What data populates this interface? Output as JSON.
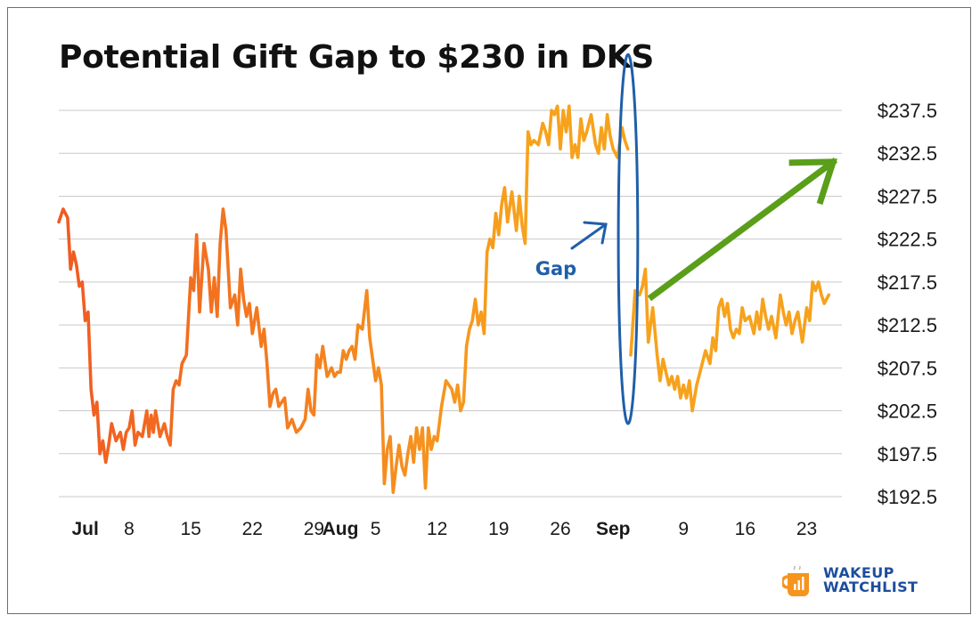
{
  "chart_data": {
    "type": "line",
    "title": "Potential Gift Gap to $230 in DKS",
    "y_ticks": [
      "$237.5",
      "$232.5",
      "$227.5",
      "$222.5",
      "$217.5",
      "$212.5",
      "$207.5",
      "$202.5",
      "$197.5",
      "$192.5"
    ],
    "y_tick_values": [
      237.5,
      232.5,
      227.5,
      222.5,
      217.5,
      212.5,
      207.5,
      202.5,
      197.5,
      192.5
    ],
    "ylim": [
      192.5,
      237.5
    ],
    "y_axis_side": "right",
    "x_ticks": [
      {
        "label": "Jul",
        "date": "2023-07-03",
        "bold": true
      },
      {
        "label": "8",
        "date": "2023-07-08",
        "bold": false
      },
      {
        "label": "15",
        "date": "2023-07-15",
        "bold": false
      },
      {
        "label": "22",
        "date": "2023-07-22",
        "bold": false
      },
      {
        "label": "29",
        "date": "2023-07-29",
        "bold": false
      },
      {
        "label": "Aug",
        "date": "2023-08-01",
        "bold": true
      },
      {
        "label": "5",
        "date": "2023-08-05",
        "bold": false
      },
      {
        "label": "12",
        "date": "2023-08-12",
        "bold": false
      },
      {
        "label": "19",
        "date": "2023-08-19",
        "bold": false
      },
      {
        "label": "26",
        "date": "2023-08-26",
        "bold": false
      },
      {
        "label": "Sep",
        "date": "2023-09-01",
        "bold": true
      },
      {
        "label": "9",
        "date": "2023-09-09",
        "bold": false
      },
      {
        "label": "16",
        "date": "2023-09-16",
        "bold": false
      },
      {
        "label": "23",
        "date": "2023-09-23",
        "bold": false
      }
    ],
    "xlim": [
      "2023-06-30",
      "2023-09-27"
    ],
    "grid": "horizontal",
    "series": [
      {
        "color_start": "#f05a22",
        "color_end": "#f7a21c",
        "points": [
          [
            "2023-06-30",
            224.5
          ],
          [
            "2023-06-30",
            226.0
          ],
          [
            "2023-07-01",
            225.0
          ],
          [
            "2023-07-01",
            219.0
          ],
          [
            "2023-07-01",
            221.0
          ],
          [
            "2023-07-02",
            219.5
          ],
          [
            "2023-07-02",
            217.0
          ],
          [
            "2023-07-02",
            217.5
          ],
          [
            "2023-07-03",
            213.0
          ],
          [
            "2023-07-03",
            214.0
          ],
          [
            "2023-07-03",
            205.0
          ],
          [
            "2023-07-04",
            202.0
          ],
          [
            "2023-07-04",
            203.5
          ],
          [
            "2023-07-04",
            197.5
          ],
          [
            "2023-07-05",
            199.0
          ],
          [
            "2023-07-05",
            196.5
          ],
          [
            "2023-07-05",
            198.5
          ],
          [
            "2023-07-06",
            201.0
          ],
          [
            "2023-07-06",
            199.0
          ],
          [
            "2023-07-07",
            200.0
          ],
          [
            "2023-07-07",
            198.0
          ],
          [
            "2023-07-07",
            200.0
          ],
          [
            "2023-07-08",
            200.5
          ],
          [
            "2023-07-08",
            202.5
          ],
          [
            "2023-07-08",
            198.5
          ],
          [
            "2023-07-09",
            200.0
          ],
          [
            "2023-07-09",
            199.5
          ],
          [
            "2023-07-10",
            202.5
          ],
          [
            "2023-07-10",
            199.5
          ],
          [
            "2023-07-10",
            202.0
          ],
          [
            "2023-07-10",
            200.0
          ],
          [
            "2023-07-11",
            202.5
          ],
          [
            "2023-07-11",
            199.5
          ],
          [
            "2023-07-12",
            201.0
          ],
          [
            "2023-07-12",
            199.5
          ],
          [
            "2023-07-12",
            198.5
          ],
          [
            "2023-07-13",
            205.0
          ],
          [
            "2023-07-13",
            206.0
          ],
          [
            "2023-07-13",
            205.5
          ],
          [
            "2023-07-14",
            208.0
          ],
          [
            "2023-07-14",
            209.0
          ],
          [
            "2023-07-15",
            218.0
          ],
          [
            "2023-07-15",
            216.5
          ],
          [
            "2023-07-15",
            223.0
          ],
          [
            "2023-07-16",
            214.0
          ],
          [
            "2023-07-16",
            222.0
          ],
          [
            "2023-07-17",
            219.0
          ],
          [
            "2023-07-17",
            214.0
          ],
          [
            "2023-07-17",
            218.0
          ],
          [
            "2023-07-18",
            213.5
          ],
          [
            "2023-07-18",
            222.0
          ],
          [
            "2023-07-18",
            226.0
          ],
          [
            "2023-07-19",
            223.5
          ],
          [
            "2023-07-19",
            214.5
          ],
          [
            "2023-07-20",
            216.0
          ],
          [
            "2023-07-20",
            212.5
          ],
          [
            "2023-07-20",
            219.0
          ],
          [
            "2023-07-21",
            215.5
          ],
          [
            "2023-07-21",
            213.5
          ],
          [
            "2023-07-21",
            215.0
          ],
          [
            "2023-07-22",
            211.5
          ],
          [
            "2023-07-22",
            214.5
          ],
          [
            "2023-07-23",
            210.0
          ],
          [
            "2023-07-23",
            212.0
          ],
          [
            "2023-07-23",
            208.0
          ],
          [
            "2023-07-24",
            203.0
          ],
          [
            "2023-07-24",
            204.5
          ],
          [
            "2023-07-24",
            205.0
          ],
          [
            "2023-07-25",
            203.0
          ],
          [
            "2023-07-25",
            203.5
          ],
          [
            "2023-07-25",
            204.0
          ],
          [
            "2023-07-26",
            200.5
          ],
          [
            "2023-07-26",
            201.5
          ],
          [
            "2023-07-27",
            200.0
          ],
          [
            "2023-07-27",
            200.5
          ],
          [
            "2023-07-28",
            201.5
          ],
          [
            "2023-07-28",
            205.0
          ],
          [
            "2023-07-28",
            202.5
          ],
          [
            "2023-07-29",
            202.0
          ],
          [
            "2023-07-29",
            209.0
          ],
          [
            "2023-07-29",
            207.5
          ],
          [
            "2023-07-30",
            210.0
          ],
          [
            "2023-07-30",
            206.5
          ],
          [
            "2023-07-31",
            207.5
          ],
          [
            "2023-07-31",
            206.5
          ],
          [
            "2023-07-31",
            207.0
          ],
          [
            "2023-08-01",
            207.0
          ],
          [
            "2023-08-01",
            209.5
          ],
          [
            "2023-08-01",
            208.5
          ],
          [
            "2023-08-02",
            209.5
          ],
          [
            "2023-08-02",
            210.0
          ],
          [
            "2023-08-02",
            208.5
          ],
          [
            "2023-08-03",
            212.5
          ],
          [
            "2023-08-03",
            212.0
          ],
          [
            "2023-08-04",
            216.5
          ],
          [
            "2023-08-04",
            211.0
          ],
          [
            "2023-08-04",
            208.5
          ],
          [
            "2023-08-05",
            206.0
          ],
          [
            "2023-08-05",
            207.5
          ],
          [
            "2023-08-05",
            205.5
          ],
          [
            "2023-08-06",
            194.0
          ],
          [
            "2023-08-06",
            198.0
          ],
          [
            "2023-08-06",
            199.5
          ],
          [
            "2023-08-07",
            193.0
          ],
          [
            "2023-08-07",
            196.0
          ],
          [
            "2023-08-07",
            198.5
          ],
          [
            "2023-08-08",
            196.0
          ],
          [
            "2023-08-08",
            195.0
          ],
          [
            "2023-08-08",
            197.5
          ],
          [
            "2023-08-09",
            199.5
          ],
          [
            "2023-08-09",
            196.5
          ],
          [
            "2023-08-09",
            200.5
          ],
          [
            "2023-08-10",
            198.0
          ],
          [
            "2023-08-10",
            200.5
          ],
          [
            "2023-08-10",
            193.5
          ],
          [
            "2023-08-11",
            200.5
          ],
          [
            "2023-08-11",
            198.0
          ],
          [
            "2023-08-11",
            199.5
          ],
          [
            "2023-08-12",
            199.0
          ],
          [
            "2023-08-12",
            203.0
          ],
          [
            "2023-08-13",
            206.0
          ],
          [
            "2023-08-13",
            205.5
          ],
          [
            "2023-08-13",
            205.0
          ],
          [
            "2023-08-14",
            203.5
          ],
          [
            "2023-08-14",
            205.5
          ],
          [
            "2023-08-14",
            202.5
          ],
          [
            "2023-08-15",
            203.5
          ],
          [
            "2023-08-15",
            210.0
          ],
          [
            "2023-08-15",
            212.0
          ],
          [
            "2023-08-16",
            213.0
          ],
          [
            "2023-08-16",
            215.5
          ],
          [
            "2023-08-16",
            212.5
          ],
          [
            "2023-08-17",
            214.0
          ],
          [
            "2023-08-17",
            211.5
          ],
          [
            "2023-08-17",
            221.0
          ],
          [
            "2023-08-18",
            222.5
          ],
          [
            "2023-08-18",
            221.5
          ],
          [
            "2023-08-18",
            225.5
          ],
          [
            "2023-08-19",
            223.0
          ],
          [
            "2023-08-19",
            226.5
          ],
          [
            "2023-08-19",
            228.5
          ],
          [
            "2023-08-20",
            224.5
          ],
          [
            "2023-08-20",
            228.0
          ],
          [
            "2023-08-21",
            223.5
          ],
          [
            "2023-08-21",
            227.5
          ],
          [
            "2023-08-21",
            224.0
          ],
          [
            "2023-08-22",
            222.0
          ],
          [
            "2023-08-22",
            235.0
          ],
          [
            "2023-08-22",
            233.5
          ],
          [
            "2023-08-23",
            234.0
          ],
          [
            "2023-08-23",
            233.5
          ],
          [
            "2023-08-24",
            236.0
          ],
          [
            "2023-08-24",
            235.0
          ],
          [
            "2023-08-24",
            233.5
          ],
          [
            "2023-08-25",
            237.5
          ],
          [
            "2023-08-25",
            237.0
          ],
          [
            "2023-08-25",
            238.0
          ],
          [
            "2023-08-26",
            233.0
          ],
          [
            "2023-08-26",
            237.5
          ],
          [
            "2023-08-26",
            235.0
          ],
          [
            "2023-08-27",
            238.0
          ],
          [
            "2023-08-27",
            232.0
          ],
          [
            "2023-08-27",
            233.5
          ],
          [
            "2023-08-28",
            232.0
          ],
          [
            "2023-08-28",
            236.5
          ],
          [
            "2023-08-28",
            234.0
          ],
          [
            "2023-08-29",
            235.0
          ],
          [
            "2023-08-29",
            237.0
          ],
          [
            "2023-08-30",
            233.5
          ],
          [
            "2023-08-30",
            232.5
          ],
          [
            "2023-08-30",
            235.5
          ],
          [
            "2023-08-31",
            233.0
          ],
          [
            "2023-08-31",
            237.0
          ],
          [
            "2023-08-31",
            234.5
          ],
          [
            "2023-09-01",
            233.0
          ],
          [
            "2023-09-01",
            232.0
          ],
          [
            "2023-09-02",
            235.5
          ],
          [
            "2023-09-02",
            234.0
          ],
          [
            "2023-09-02",
            233.0
          ]
        ]
      },
      {
        "color_start": "#f05a22",
        "color_end": "#f7a21c",
        "points": [
          [
            "2023-09-03",
            209.0
          ],
          [
            "2023-09-03",
            216.5
          ],
          [
            "2023-09-04",
            216.0
          ],
          [
            "2023-09-04",
            217.0
          ],
          [
            "2023-09-04",
            219.0
          ],
          [
            "2023-09-05",
            210.5
          ],
          [
            "2023-09-05",
            214.5
          ],
          [
            "2023-09-06",
            209.0
          ],
          [
            "2023-09-06",
            206.0
          ],
          [
            "2023-09-06",
            208.5
          ],
          [
            "2023-09-07",
            207.0
          ],
          [
            "2023-09-07",
            205.5
          ],
          [
            "2023-09-07",
            206.5
          ],
          [
            "2023-09-08",
            205.0
          ],
          [
            "2023-09-08",
            206.5
          ],
          [
            "2023-09-08",
            204.0
          ],
          [
            "2023-09-09",
            205.5
          ],
          [
            "2023-09-09",
            204.0
          ],
          [
            "2023-09-09",
            206.0
          ],
          [
            "2023-09-10",
            202.5
          ],
          [
            "2023-09-10",
            205.5
          ],
          [
            "2023-09-11",
            207.5
          ],
          [
            "2023-09-11",
            209.5
          ],
          [
            "2023-09-12",
            208.0
          ],
          [
            "2023-09-12",
            211.0
          ],
          [
            "2023-09-12",
            209.5
          ],
          [
            "2023-09-13",
            214.5
          ],
          [
            "2023-09-13",
            215.5
          ],
          [
            "2023-09-13",
            213.5
          ],
          [
            "2023-09-14",
            215.0
          ],
          [
            "2023-09-14",
            212.0
          ],
          [
            "2023-09-14",
            211.0
          ],
          [
            "2023-09-15",
            212.0
          ],
          [
            "2023-09-15",
            211.5
          ],
          [
            "2023-09-15",
            214.5
          ],
          [
            "2023-09-16",
            213.0
          ],
          [
            "2023-09-16",
            213.5
          ],
          [
            "2023-09-17",
            211.5
          ],
          [
            "2023-09-17",
            214.0
          ],
          [
            "2023-09-17",
            212.0
          ],
          [
            "2023-09-18",
            215.5
          ],
          [
            "2023-09-18",
            213.5
          ],
          [
            "2023-09-18",
            212.0
          ],
          [
            "2023-09-19",
            213.5
          ],
          [
            "2023-09-19",
            211.0
          ],
          [
            "2023-09-20",
            216.0
          ],
          [
            "2023-09-20",
            214.0
          ],
          [
            "2023-09-20",
            212.5
          ],
          [
            "2023-09-21",
            214.0
          ],
          [
            "2023-09-21",
            211.5
          ],
          [
            "2023-09-21",
            213.0
          ],
          [
            "2023-09-22",
            214.0
          ],
          [
            "2023-09-22",
            210.5
          ],
          [
            "2023-09-23",
            214.5
          ],
          [
            "2023-09-23",
            213.0
          ],
          [
            "2023-09-23",
            217.5
          ],
          [
            "2023-09-24",
            216.5
          ],
          [
            "2023-09-24",
            217.5
          ],
          [
            "2023-09-24",
            216.0
          ],
          [
            "2023-09-25",
            215.0
          ],
          [
            "2023-09-25",
            216.0
          ]
        ]
      }
    ],
    "annotations": [
      {
        "kind": "ellipse",
        "name": "gap-ellipse",
        "color": "#1f5fa8",
        "x": "2023-09-03",
        "y": 222.5,
        "rx_days": 1.1,
        "ry": 21.5
      },
      {
        "kind": "label",
        "name": "gap-label",
        "text": "Gap",
        "color": "#1f5fa8"
      },
      {
        "kind": "arrow",
        "name": "gap-arrow",
        "color": "#1f5fa8"
      },
      {
        "kind": "arrow",
        "name": "target-arrow",
        "color": "#5a9e1a",
        "from": [
          "2023-09-05",
          216.0
        ],
        "to": [
          "2023-09-26",
          231.5
        ]
      }
    ]
  },
  "logo": {
    "line1": "WAKEUP",
    "line2": "WATCHLIST",
    "color": "#1d4e9e",
    "mug_color": "#f7941d"
  }
}
